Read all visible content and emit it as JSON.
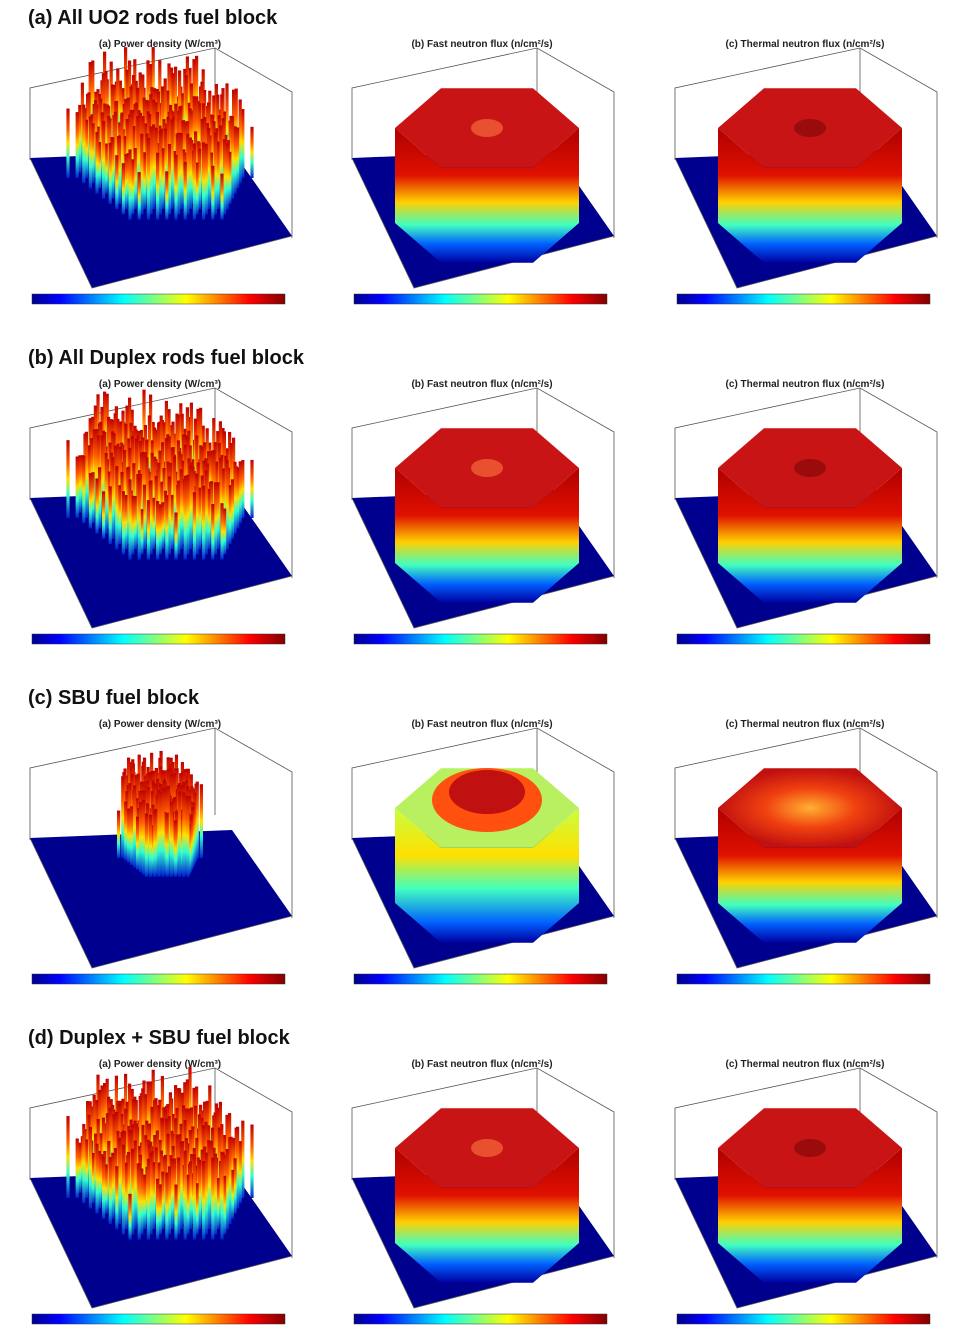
{
  "rows": [
    {
      "title": "(a) All UO2 rods fuel block",
      "panels": [
        {
          "title": "(a) Power density (W/cm³)"
        },
        {
          "title": "(b) Fast neutron flux (n/cm²/s)"
        },
        {
          "title": "(c) Thermal neutron flux (n/cm²/s)"
        }
      ]
    },
    {
      "title": "(b) All Duplex rods fuel block",
      "panels": [
        {
          "title": "(a) Power density (W/cm³)"
        },
        {
          "title": "(b) Fast neutron flux (n/cm²/s)"
        },
        {
          "title": "(c) Thermal neutron flux (n/cm²/s)"
        }
      ]
    },
    {
      "title": "(c) SBU fuel block",
      "panels": [
        {
          "title": "(a) Power density (W/cm³)"
        },
        {
          "title": "(b) Fast neutron flux (n/cm²/s)"
        },
        {
          "title": "(c) Thermal neutron flux (n/cm²/s)"
        }
      ]
    },
    {
      "title": "(d) Duplex + SBU fuel block",
      "panels": [
        {
          "title": "(a) Power density (W/cm³)"
        },
        {
          "title": "(b) Fast neutron flux (n/cm²/s)"
        },
        {
          "title": "(c) Thermal neutron flux (n/cm²/s)"
        }
      ]
    }
  ]
}
